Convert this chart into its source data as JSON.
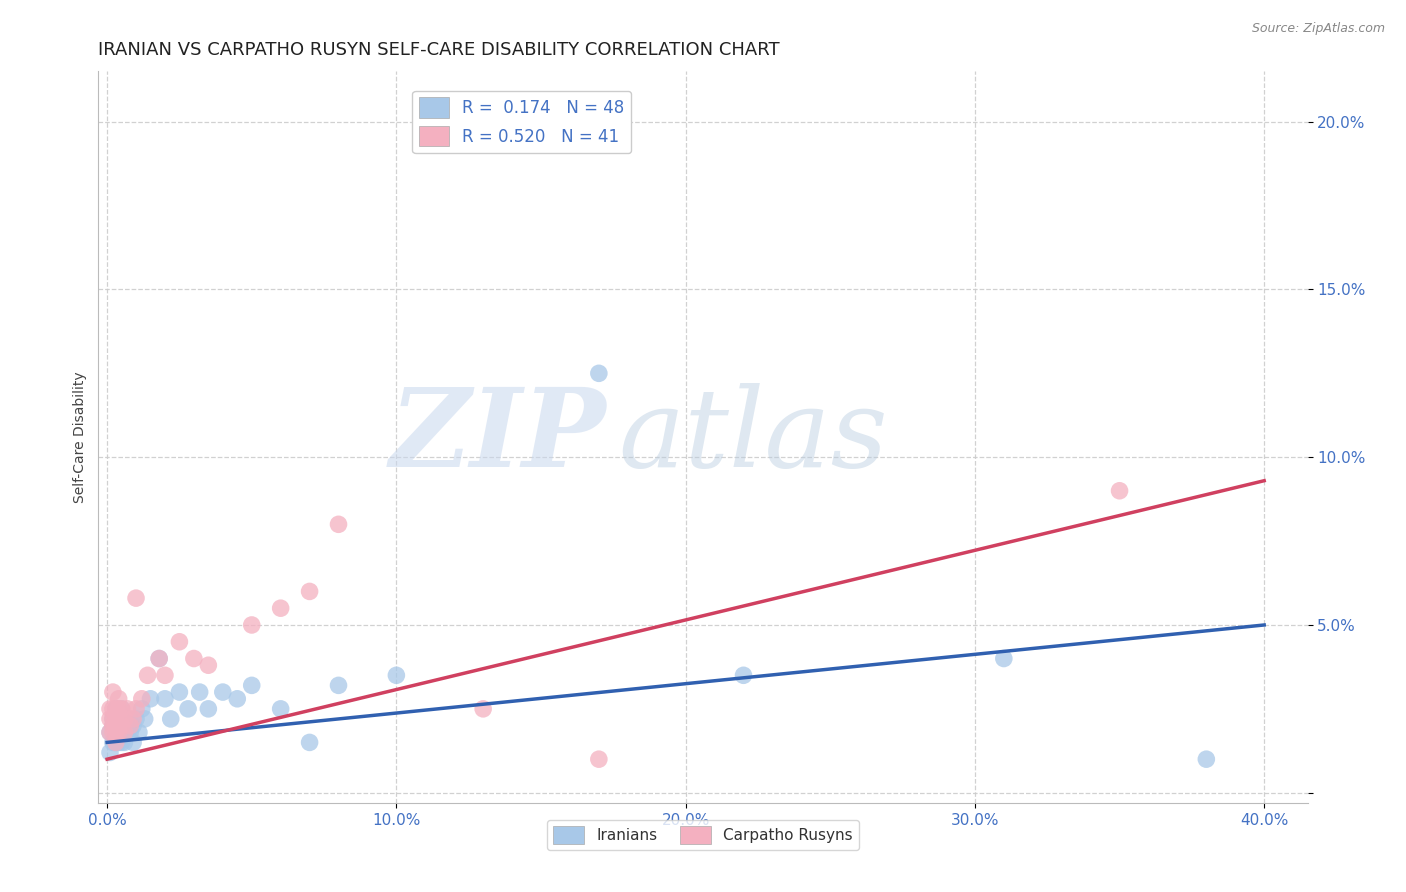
{
  "title": "IRANIAN VS CARPATHO RUSYN SELF-CARE DISABILITY CORRELATION CHART",
  "source": "Source: ZipAtlas.com",
  "ylabel": "Self-Care Disability",
  "xlim": [
    -0.003,
    0.415
  ],
  "ylim": [
    -0.003,
    0.215
  ],
  "xticks": [
    0.0,
    0.1,
    0.2,
    0.3,
    0.4
  ],
  "xtick_labels": [
    "0.0%",
    "10.0%",
    "20.0%",
    "30.0%",
    "40.0%"
  ],
  "yticks": [
    0.0,
    0.05,
    0.1,
    0.15,
    0.2
  ],
  "ytick_labels": [
    "",
    "5.0%",
    "10.0%",
    "15.0%",
    "20.0%"
  ],
  "iranian_R": 0.174,
  "iranian_N": 48,
  "carpatho_R": 0.52,
  "carpatho_N": 41,
  "iranian_color": "#a8c8e8",
  "carpatho_color": "#f4b0c0",
  "iranian_line_color": "#3060b0",
  "carpatho_line_color": "#d04060",
  "legend_label_iranian": "Iranians",
  "legend_label_carpatho": "Carpatho Rusyns",
  "watermark_zip": "ZIP",
  "watermark_atlas": "atlas",
  "background_color": "#ffffff",
  "grid_color": "#cccccc",
  "axis_color": "#4472c4",
  "title_fontsize": 13,
  "label_fontsize": 10,
  "tick_fontsize": 11,
  "iranians_x": [
    0.001,
    0.001,
    0.002,
    0.002,
    0.002,
    0.003,
    0.003,
    0.003,
    0.003,
    0.004,
    0.004,
    0.004,
    0.005,
    0.005,
    0.005,
    0.005,
    0.006,
    0.006,
    0.006,
    0.007,
    0.007,
    0.008,
    0.008,
    0.009,
    0.009,
    0.01,
    0.011,
    0.012,
    0.013,
    0.015,
    0.018,
    0.02,
    0.022,
    0.025,
    0.028,
    0.032,
    0.035,
    0.04,
    0.045,
    0.05,
    0.06,
    0.07,
    0.08,
    0.1,
    0.17,
    0.22,
    0.31,
    0.38
  ],
  "iranians_y": [
    0.018,
    0.012,
    0.02,
    0.015,
    0.022,
    0.018,
    0.025,
    0.015,
    0.02,
    0.02,
    0.015,
    0.022,
    0.018,
    0.02,
    0.015,
    0.025,
    0.018,
    0.022,
    0.015,
    0.02,
    0.018,
    0.022,
    0.018,
    0.02,
    0.015,
    0.022,
    0.018,
    0.025,
    0.022,
    0.028,
    0.04,
    0.028,
    0.022,
    0.03,
    0.025,
    0.03,
    0.025,
    0.03,
    0.028,
    0.032,
    0.025,
    0.015,
    0.032,
    0.035,
    0.125,
    0.035,
    0.04,
    0.01
  ],
  "carpathians_x": [
    0.001,
    0.001,
    0.001,
    0.002,
    0.002,
    0.002,
    0.002,
    0.002,
    0.003,
    0.003,
    0.003,
    0.003,
    0.003,
    0.004,
    0.004,
    0.004,
    0.004,
    0.004,
    0.005,
    0.005,
    0.006,
    0.006,
    0.007,
    0.008,
    0.009,
    0.01,
    0.012,
    0.014,
    0.018,
    0.02,
    0.025,
    0.03,
    0.035,
    0.05,
    0.06,
    0.07,
    0.08,
    0.13,
    0.17,
    0.35,
    0.01
  ],
  "carpathians_y": [
    0.022,
    0.025,
    0.018,
    0.02,
    0.025,
    0.022,
    0.018,
    0.03,
    0.02,
    0.025,
    0.018,
    0.022,
    0.015,
    0.025,
    0.02,
    0.018,
    0.022,
    0.028,
    0.02,
    0.025,
    0.022,
    0.018,
    0.025,
    0.02,
    0.022,
    0.025,
    0.028,
    0.035,
    0.04,
    0.035,
    0.045,
    0.04,
    0.038,
    0.05,
    0.055,
    0.06,
    0.08,
    0.025,
    0.01,
    0.09,
    0.058
  ],
  "iran_line_x0": 0.0,
  "iran_line_y0": 0.015,
  "iran_line_x1": 0.4,
  "iran_line_y1": 0.05,
  "carp_line_x0": 0.0,
  "carp_line_y0": 0.01,
  "carp_line_x1": 0.4,
  "carp_line_y1": 0.093
}
